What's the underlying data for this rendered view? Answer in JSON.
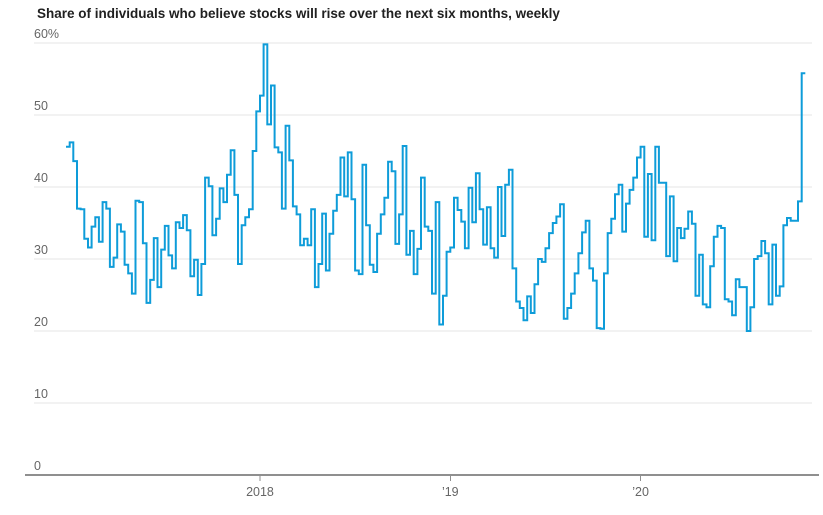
{
  "chart_data": {
    "type": "line",
    "style": "step-after",
    "title": "Share of individuals who believe stocks will rise over the next six months, weekly",
    "unit": "%",
    "xlabel": "",
    "ylabel": "",
    "legend": "none",
    "y_axis": {
      "min": 0,
      "max": 60,
      "grid": true,
      "ticks": [
        {
          "value": 60,
          "label": "60%"
        },
        {
          "value": 50,
          "label": "50"
        },
        {
          "value": 40,
          "label": "40"
        },
        {
          "value": 30,
          "label": "30"
        },
        {
          "value": 20,
          "label": "20"
        },
        {
          "value": 10,
          "label": "10"
        },
        {
          "value": 0,
          "label": "0"
        }
      ]
    },
    "x_axis": {
      "ticks": [
        {
          "label": "2018",
          "week_index": 53
        },
        {
          "label": "’19",
          "week_index": 105
        },
        {
          "label": "’20",
          "week_index": 157
        }
      ]
    },
    "series": [
      {
        "name": "Share who believe stocks will rise",
        "cadence": "weekly",
        "values": [
          45.6,
          46.2,
          43.6,
          37.0,
          36.9,
          32.8,
          31.6,
          34.5,
          35.8,
          32.4,
          37.9,
          37.0,
          28.9,
          30.2,
          34.8,
          33.8,
          29.2,
          28.0,
          25.2,
          38.1,
          37.9,
          32.2,
          23.9,
          27.1,
          32.9,
          26.1,
          31.3,
          34.6,
          30.5,
          28.7,
          35.1,
          34.3,
          36.1,
          34.0,
          27.6,
          29.9,
          25.0,
          29.3,
          41.3,
          40.1,
          33.3,
          35.6,
          39.8,
          37.9,
          41.7,
          45.1,
          38.9,
          29.3,
          34.7,
          35.8,
          36.9,
          45.0,
          50.5,
          52.7,
          59.8,
          48.7,
          54.1,
          45.5,
          44.8,
          37.0,
          48.5,
          43.7,
          37.3,
          36.2,
          31.9,
          32.8,
          31.9,
          36.9,
          26.1,
          29.3,
          36.3,
          28.4,
          33.5,
          36.7,
          38.9,
          44.1,
          38.7,
          44.8,
          38.3,
          28.4,
          27.9,
          43.1,
          34.7,
          29.2,
          28.2,
          33.5,
          36.2,
          38.5,
          43.5,
          42.2,
          32.1,
          36.2,
          45.7,
          30.6,
          33.9,
          27.9,
          31.4,
          41.3,
          34.5,
          33.9,
          25.2,
          37.9,
          20.9,
          24.9,
          31.0,
          31.6,
          38.5,
          36.8,
          35.2,
          31.5,
          39.9,
          35.1,
          41.9,
          36.9,
          32.0,
          37.2,
          31.5,
          30.2,
          40.0,
          33.2,
          40.3,
          42.4,
          28.7,
          24.1,
          23.2,
          21.5,
          24.8,
          22.5,
          26.5,
          30.0,
          29.6,
          31.5,
          33.6,
          35.0,
          35.9,
          37.6,
          21.7,
          23.2,
          25.2,
          28.0,
          30.8,
          33.7,
          35.3,
          28.7,
          27.0,
          20.4,
          20.3,
          28.0,
          33.6,
          35.6,
          39.0,
          40.3,
          33.8,
          37.7,
          39.6,
          41.3,
          44.1,
          45.6,
          33.1,
          41.8,
          32.6,
          45.6,
          40.6,
          40.6,
          30.4,
          38.7,
          29.7,
          34.3,
          32.9,
          34.2,
          36.6,
          34.9,
          24.9,
          30.6,
          23.7,
          23.3,
          29.0,
          33.1,
          34.6,
          34.3,
          24.4,
          24.1,
          22.2,
          27.2,
          26.1,
          26.1,
          20.0,
          23.3,
          30.0,
          30.4,
          32.5,
          30.8,
          23.7,
          32.0,
          24.9,
          26.2,
          34.7,
          35.7,
          35.3,
          35.3,
          38.0,
          55.8
        ]
      }
    ],
    "colors": {
      "line": "#0e9cd9",
      "grid": "#e6e6e6",
      "axis": "#8f8f8f",
      "axis_text": "#666666",
      "title_text": "#202020"
    }
  }
}
